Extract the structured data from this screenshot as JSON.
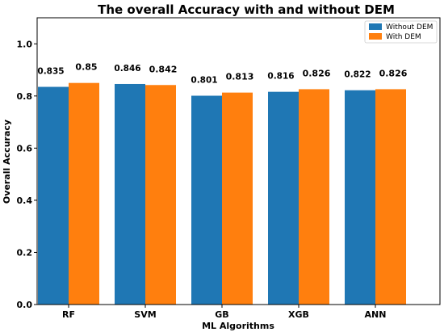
{
  "chart_data": {
    "type": "bar",
    "title": "The overall Accuracy with and without DEM",
    "xlabel": "ML Algorithms",
    "ylabel": "Overall Accuracy",
    "categories": [
      "RF",
      "SVM",
      "GB",
      "XGB",
      "ANN"
    ],
    "series": [
      {
        "name": "Without DEM",
        "color": "#1f77b4",
        "values": [
          0.835,
          0.846,
          0.801,
          0.816,
          0.822
        ],
        "labels": [
          "0.835",
          "0.846",
          "0.801",
          "0.816",
          "0.822"
        ]
      },
      {
        "name": "With DEM",
        "color": "#ff7f0e",
        "values": [
          0.85,
          0.842,
          0.813,
          0.826,
          0.826
        ],
        "labels": [
          "0.85",
          "0.842",
          "0.813",
          "0.826",
          "0.826"
        ]
      }
    ],
    "ylim": [
      0,
      1.1
    ],
    "yticks": [
      "0.0",
      "0.2",
      "0.4",
      "0.6",
      "0.8",
      "1.0"
    ],
    "legend_position": "top-right",
    "grid": false
  }
}
